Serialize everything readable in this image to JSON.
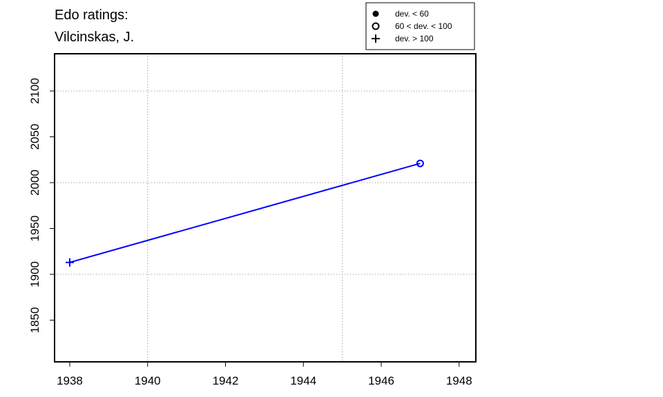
{
  "chart_data": {
    "type": "line",
    "title": "Edo ratings:",
    "subtitle": "Vilcinskas, J.",
    "x": [
      1938,
      1947
    ],
    "series": [
      {
        "name": "Vilcinskas, J.",
        "color": "#0000ff",
        "values": [
          1913,
          2021
        ],
        "markers": [
          "plus",
          "circle"
        ]
      }
    ],
    "xlim": [
      1937.61,
      1948.43
    ],
    "xticks": [
      1938,
      1940,
      1942,
      1944,
      1946,
      1948
    ],
    "ylim": [
      1804.5,
      2140.6
    ],
    "yticks": [
      1850,
      1900,
      1950,
      2000,
      2050,
      2100
    ],
    "xgrid": [
      1940,
      1945
    ],
    "ygrid": [
      1900,
      2000,
      2100
    ],
    "legend": {
      "position": "top-right",
      "entries": [
        {
          "label": "dev. < 60",
          "marker": "dot"
        },
        {
          "label": "60 < dev. < 100",
          "marker": "circle"
        },
        {
          "label": "dev. > 100",
          "marker": "plus"
        }
      ]
    }
  }
}
